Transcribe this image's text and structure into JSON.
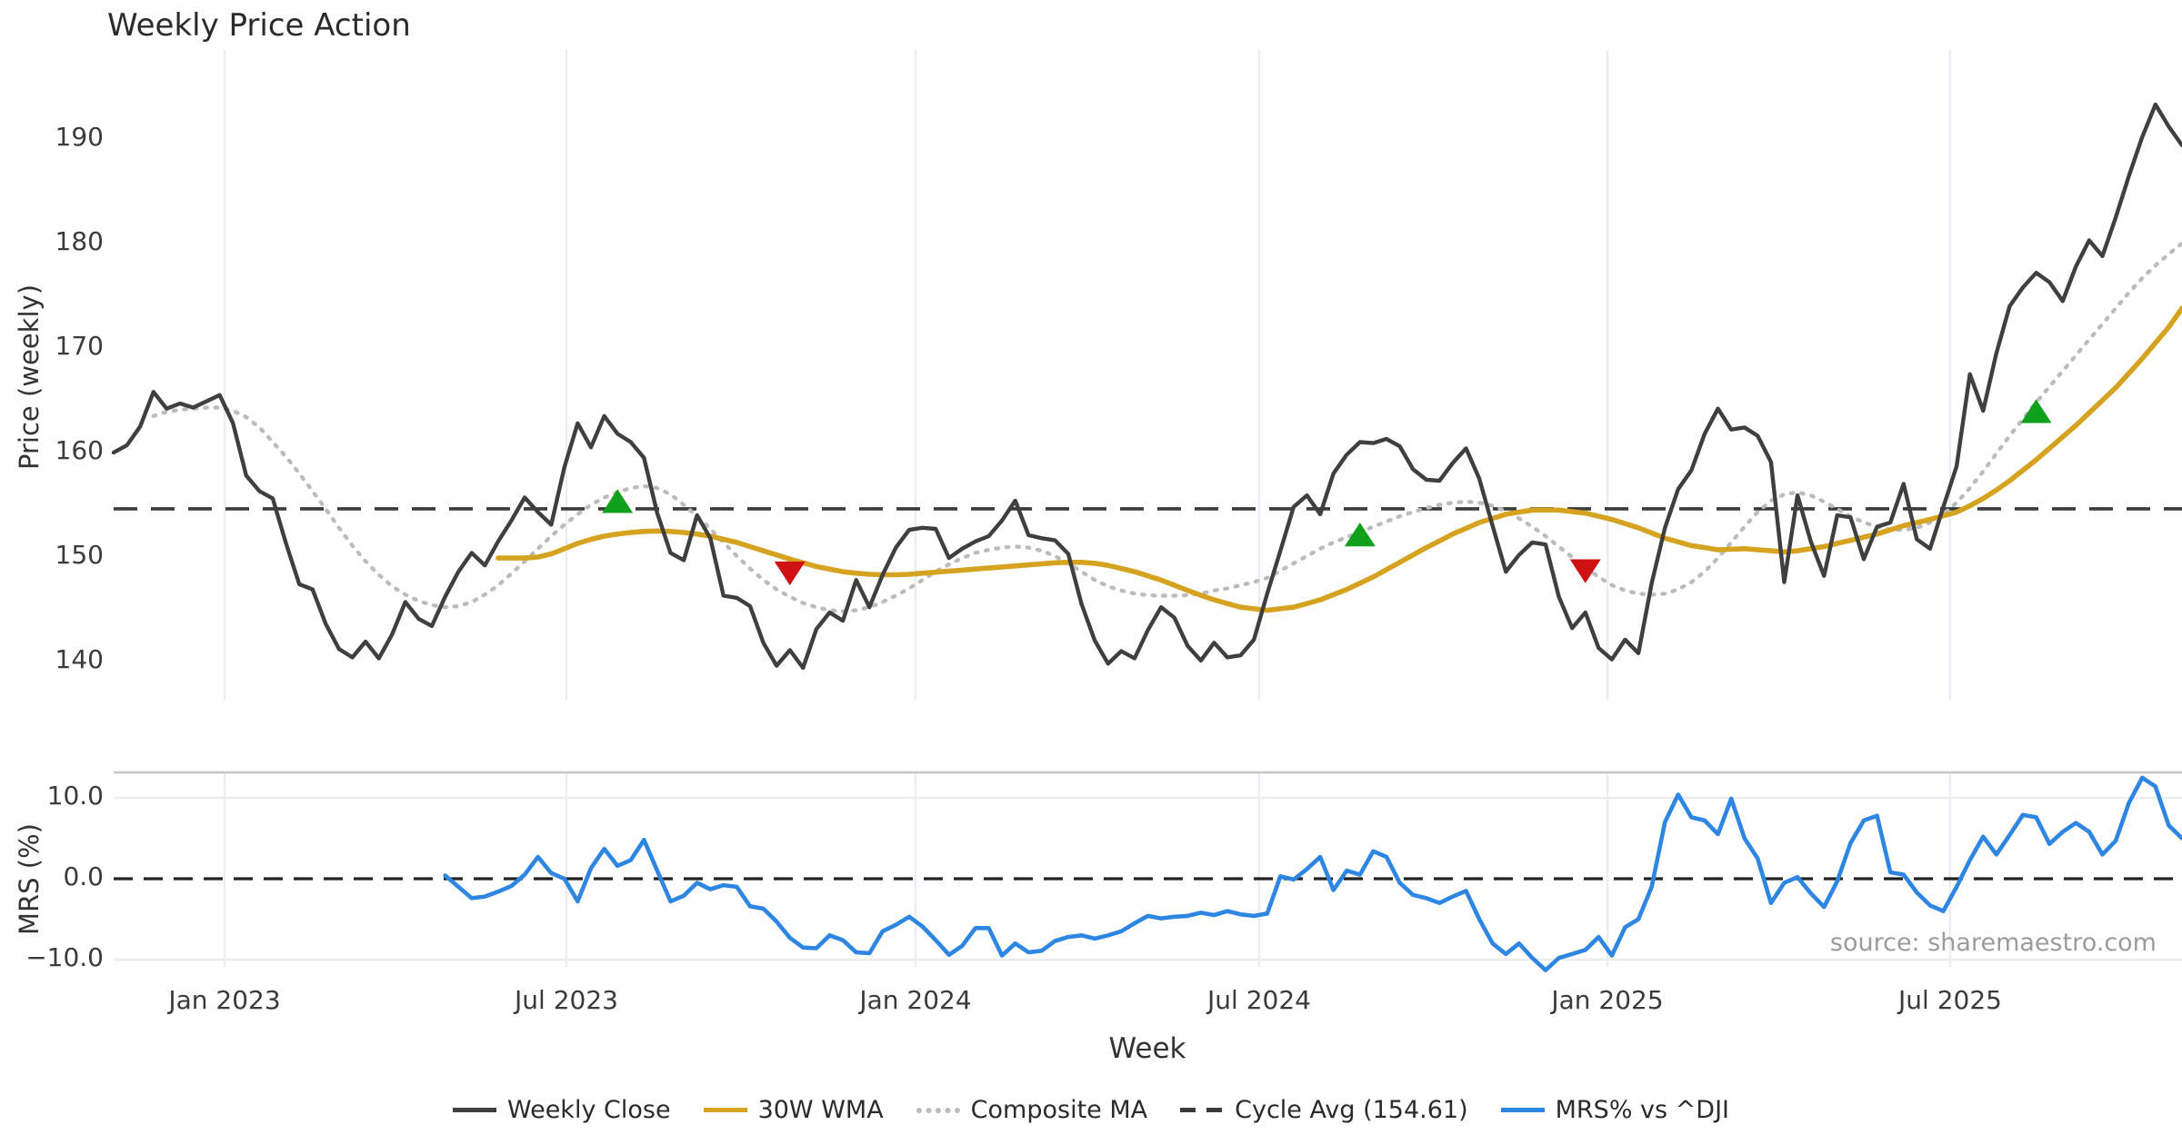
{
  "chart_data": {
    "type": "line",
    "title": "Weekly Price Action",
    "xlabel": "Week",
    "source": "source: sharemaestro.com",
    "start_date": "2022-11-06",
    "frequency": "weekly",
    "x_ticks": [
      {
        "week": 8.37,
        "label": "Jan 2023"
      },
      {
        "week": 34.15,
        "label": "Jul 2023"
      },
      {
        "week": 60.48,
        "label": "Jan 2024"
      },
      {
        "week": 86.4,
        "label": "Jul 2024"
      },
      {
        "week": 112.66,
        "label": "Jan 2025"
      },
      {
        "week": 138.51,
        "label": "Jul 2025"
      }
    ],
    "panel1": {
      "ylabel": "Price (weekly)",
      "yticks": [
        {
          "v": 190,
          "label": "190"
        },
        {
          "v": 180,
          "label": "180"
        },
        {
          "v": 170,
          "label": "170"
        },
        {
          "v": 160,
          "label": "160"
        },
        {
          "v": 150,
          "label": "150"
        },
        {
          "v": 140,
          "label": "140"
        }
      ],
      "cycle_avg": 154.61,
      "series": [
        {
          "name": "Weekly Close",
          "key": "close",
          "start_week": 0,
          "values": [
            160.0,
            160.7,
            162.5,
            165.8,
            164.2,
            164.7,
            164.3,
            164.9,
            165.5,
            162.8,
            157.8,
            156.3,
            155.6,
            151.3,
            147.4,
            146.9,
            143.6,
            141.2,
            140.4,
            141.9,
            140.3,
            142.6,
            145.7,
            144.1,
            143.4,
            146.2,
            148.6,
            150.4,
            149.2,
            151.5,
            153.5,
            155.7,
            154.3,
            153.1,
            158.6,
            162.8,
            160.5,
            163.5,
            161.8,
            161.0,
            159.5,
            154.2,
            150.4,
            149.7,
            154.0,
            151.8,
            146.3,
            146.1,
            145.3,
            141.8,
            139.6,
            141.1,
            139.4,
            143.1,
            144.7,
            143.9,
            147.8,
            145.2,
            148.3,
            150.9,
            152.6,
            152.8,
            152.7,
            149.9,
            150.8,
            151.5,
            152.0,
            153.5,
            155.4,
            152.1,
            151.8,
            151.6,
            150.3,
            145.5,
            142.0,
            139.8,
            141.0,
            140.3,
            143.0,
            145.2,
            144.2,
            141.5,
            140.1,
            141.8,
            140.4,
            140.6,
            142.1,
            146.5,
            150.6,
            154.8,
            155.9,
            154.1,
            158.0,
            159.8,
            161.0,
            160.9,
            161.3,
            160.6,
            158.4,
            157.4,
            157.3,
            159.0,
            160.4,
            157.5,
            153.0,
            148.6,
            150.2,
            151.4,
            151.2,
            146.2,
            143.2,
            144.7,
            141.3,
            140.2,
            142.1,
            140.8,
            147.5,
            152.8,
            156.5,
            158.3,
            161.8,
            164.2,
            162.2,
            162.4,
            161.6,
            159.1,
            147.6,
            155.9,
            151.5,
            148.2,
            154.0,
            153.8,
            149.8,
            152.9,
            153.3,
            157.0,
            151.7,
            150.8,
            154.8,
            158.7,
            167.5,
            164.0,
            169.5,
            174.0,
            175.8,
            177.2,
            176.3,
            174.5,
            177.8,
            180.3,
            178.8,
            182.5,
            186.5,
            190.2,
            193.3,
            191.2,
            189.4
          ]
        },
        {
          "name": "30W WMA",
          "key": "wma",
          "start_week": 29,
          "values": [
            149.9,
            149.9,
            149.9,
            150.0,
            150.3,
            150.8,
            151.3,
            151.7,
            152.0,
            152.2,
            152.35,
            152.45,
            152.5,
            152.45,
            152.35,
            152.2,
            152.0,
            151.7,
            151.4,
            151.0,
            150.6,
            150.2,
            149.8,
            149.45,
            149.1,
            148.85,
            148.6,
            148.45,
            148.35,
            148.3,
            148.3,
            148.35,
            148.45,
            148.55,
            148.65,
            148.75,
            148.85,
            148.95,
            149.05,
            149.15,
            149.25,
            149.35,
            149.45,
            149.5,
            149.5,
            149.4,
            149.2,
            148.9,
            148.6,
            148.2,
            147.8,
            147.3,
            146.8,
            146.35,
            145.9,
            145.55,
            145.2,
            145.05,
            144.9,
            145.05,
            145.2,
            145.55,
            145.9,
            146.4,
            146.9,
            147.5,
            148.1,
            148.8,
            149.5,
            150.2,
            150.9,
            151.55,
            152.2,
            152.75,
            153.3,
            153.7,
            154.1,
            154.3,
            154.5,
            154.5,
            154.5,
            154.35,
            154.2,
            153.9,
            153.6,
            153.2,
            152.8,
            152.3,
            151.8,
            151.45,
            151.1,
            150.9,
            150.7,
            150.75,
            150.8,
            150.7,
            150.6,
            150.5,
            150.6,
            150.8,
            151.0,
            151.3,
            151.6,
            151.9,
            152.2,
            152.6,
            153.0,
            153.3,
            153.6,
            153.95,
            154.3,
            154.9,
            155.6,
            156.4,
            157.3,
            158.3,
            159.3,
            160.4,
            161.5,
            162.6,
            163.8,
            165.0,
            166.2,
            167.6,
            169.0,
            170.5,
            172.0,
            173.8
          ]
        },
        {
          "name": "Composite MA",
          "key": "composite",
          "start_week": 3,
          "values": [
            163.5,
            163.9,
            164.1,
            164.2,
            164.3,
            164.3,
            164.0,
            163.4,
            162.4,
            161.0,
            159.6,
            158.0,
            156.3,
            154.6,
            152.8,
            151.1,
            149.6,
            148.3,
            147.2,
            146.4,
            145.8,
            145.4,
            145.2,
            145.3,
            145.7,
            146.4,
            147.3,
            148.4,
            149.6,
            150.8,
            152.0,
            153.1,
            154.1,
            155.0,
            155.7,
            156.2,
            156.6,
            156.8,
            156.6,
            156.0,
            155.0,
            153.9,
            152.7,
            151.4,
            150.1,
            148.9,
            147.8,
            146.9,
            146.2,
            145.6,
            145.2,
            144.9,
            144.8,
            144.9,
            145.2,
            145.7,
            146.3,
            147.0,
            147.8,
            148.6,
            149.3,
            149.9,
            150.4,
            150.7,
            150.9,
            151.0,
            150.9,
            150.6,
            150.1,
            149.4,
            148.6,
            147.8,
            147.2,
            146.8,
            146.5,
            146.35,
            146.3,
            146.3,
            146.35,
            146.5,
            146.8,
            147.0,
            147.3,
            147.6,
            148.0,
            148.7,
            149.4,
            150.1,
            150.8,
            151.4,
            151.9,
            152.4,
            152.9,
            153.4,
            153.9,
            154.3,
            154.7,
            155.0,
            155.2,
            155.3,
            155.2,
            154.9,
            154.4,
            153.7,
            152.9,
            152.0,
            151.0,
            150.0,
            149.0,
            148.1,
            147.3,
            146.8,
            146.5,
            146.4,
            146.5,
            146.9,
            147.6,
            148.6,
            149.9,
            151.4,
            152.9,
            154.3,
            155.4,
            156.0,
            156.2,
            155.9,
            155.3,
            154.6,
            153.9,
            153.3,
            152.9,
            152.6,
            152.6,
            152.8,
            153.3,
            154.1,
            155.2,
            156.6,
            158.2,
            159.9,
            161.6,
            163.2,
            164.8,
            166.3,
            167.8,
            169.3,
            170.8,
            172.3,
            173.8,
            175.3,
            176.7,
            177.9,
            179.0,
            180.0
          ]
        }
      ],
      "markers": [
        {
          "type": "buy",
          "week": 38,
          "value": 155.2
        },
        {
          "type": "sell",
          "week": 51,
          "value": 148.6
        },
        {
          "type": "buy",
          "week": 94,
          "value": 152.0
        },
        {
          "type": "sell",
          "week": 111,
          "value": 148.8
        },
        {
          "type": "buy",
          "week": 145,
          "value": 163.8
        }
      ]
    },
    "panel2": {
      "ylabel": "MRS (%)",
      "yticks": [
        {
          "v": 10,
          "label": "10.0"
        },
        {
          "v": 0,
          "label": "0.0"
        },
        {
          "v": -10,
          "label": "−10.0"
        }
      ],
      "zero_line": 0,
      "series": [
        {
          "name": "MRS% vs ^DJI",
          "key": "mrs",
          "start_week": 25,
          "values": [
            0.4,
            -1.0,
            -2.4,
            -2.2,
            -1.6,
            -0.9,
            0.5,
            2.7,
            0.7,
            0.0,
            -2.8,
            1.3,
            3.7,
            1.6,
            2.3,
            4.8,
            1.0,
            -2.8,
            -2.1,
            -0.5,
            -1.3,
            -0.8,
            -1.0,
            -3.4,
            -3.7,
            -5.3,
            -7.3,
            -8.5,
            -8.6,
            -7.0,
            -7.6,
            -9.1,
            -9.2,
            -6.5,
            -5.7,
            -4.7,
            -5.9,
            -7.6,
            -9.4,
            -8.3,
            -6.1,
            -6.1,
            -9.5,
            -8.0,
            -9.1,
            -8.9,
            -7.7,
            -7.2,
            -7.0,
            -7.4,
            -7.0,
            -6.5,
            -5.5,
            -4.6,
            -4.9,
            -4.7,
            -4.6,
            -4.2,
            -4.5,
            -4.0,
            -4.4,
            -4.6,
            -4.3,
            0.3,
            -0.1,
            1.2,
            2.7,
            -1.4,
            1.0,
            0.5,
            3.4,
            2.7,
            -0.5,
            -2.0,
            -2.4,
            -3.0,
            -2.2,
            -1.5,
            -5.0,
            -8.0,
            -9.3,
            -8.0,
            -9.8,
            -11.3,
            -9.8,
            -9.3,
            -8.8,
            -7.2,
            -9.5,
            -6.0,
            -5.0,
            -1.0,
            7.0,
            10.4,
            7.6,
            7.2,
            5.5,
            9.9,
            5.0,
            2.5,
            -3.0,
            -0.5,
            0.2,
            -1.8,
            -3.5,
            -0.3,
            4.4,
            7.2,
            7.8,
            0.8,
            0.5,
            -1.7,
            -3.3,
            -4.0,
            -1.0,
            2.3,
            5.2,
            3.0,
            5.4,
            7.9,
            7.6,
            4.3,
            5.8,
            6.9,
            5.8,
            3.0,
            4.7,
            9.4,
            12.5,
            11.4,
            6.6,
            5.0
          ]
        }
      ]
    },
    "colors": {
      "close": "#3f3f3f",
      "wma": "#d6a321",
      "composite": "#bcbcbc",
      "cycle": "#3a3a3a",
      "mrs": "#2e86e3",
      "buy": "#10a11c",
      "sell": "#cf1111",
      "grid": "#ebebf2",
      "hgrid": "#ededed",
      "panel_border": "#c6c6c6"
    }
  },
  "legend": {
    "items": [
      {
        "label": "Weekly Close",
        "style": "solid",
        "color": "#3f3f3f"
      },
      {
        "label": "30W WMA",
        "style": "solid",
        "color": "#d6a321"
      },
      {
        "label": "Composite MA",
        "style": "dotted",
        "color": "#bcbcbc"
      },
      {
        "label": "Cycle Avg (154.61)",
        "style": "dashed",
        "color": "#3a3a3a"
      },
      {
        "label": "MRS% vs ^DJI",
        "style": "solid",
        "color": "#2e86e3"
      }
    ]
  }
}
